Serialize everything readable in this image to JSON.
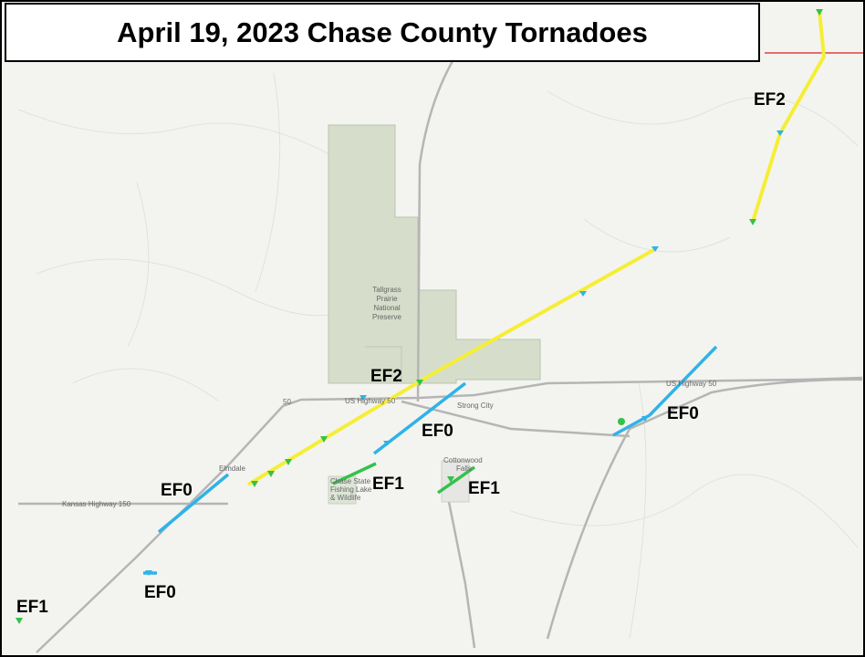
{
  "title": "April 19, 2023 Chase County Tornadoes",
  "tornado_labels": [
    "EF2",
    "EF2",
    "EF0",
    "EF0",
    "EF0",
    "EF1",
    "EF1",
    "EF0",
    "EF1"
  ],
  "map_labels": {
    "preserve": [
      "Tallgrass",
      "Prairie",
      "National",
      "Preserve"
    ],
    "us_highway_west": "US Highway 50",
    "us_highway_east": "US Highway 50",
    "highway_shield": "50",
    "strong_city": "Strong City",
    "cottonwood_falls": [
      "Cottonwood",
      "Falls"
    ],
    "elmdale": "Elmdale",
    "kansas_highway": "Kansas Highway 150",
    "fishing_lake": [
      "Chase State",
      "Fishing Lake",
      "& Wildlife"
    ]
  }
}
